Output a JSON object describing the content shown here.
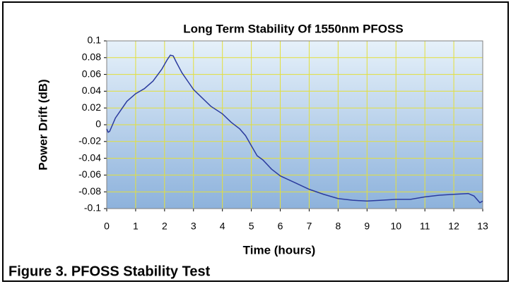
{
  "chart_data": {
    "type": "line",
    "title": "Long Term Stability Of 1550nm PFOSS",
    "xlabel": "Time (hours)",
    "ylabel": "Power Drift (dB)",
    "caption": "Figure 3. PFOSS Stability Test",
    "color": "#2b3b9e",
    "grid": true,
    "x": [
      0,
      0.05,
      0.1,
      0.2,
      0.3,
      0.5,
      0.7,
      1.0,
      1.3,
      1.6,
      1.9,
      2.1,
      2.2,
      2.3,
      2.4,
      2.6,
      2.8,
      3.0,
      3.3,
      3.6,
      4.0,
      4.3,
      4.6,
      4.8,
      5.0,
      5.2,
      5.4,
      5.7,
      6.0,
      6.5,
      7.0,
      7.5,
      8.0,
      8.5,
      9.0,
      9.5,
      10.0,
      10.5,
      11.0,
      11.5,
      12.0,
      12.5,
      12.7,
      12.9,
      13.0
    ],
    "values": [
      -0.005,
      -0.009,
      -0.008,
      0.0,
      0.008,
      0.018,
      0.028,
      0.037,
      0.043,
      0.052,
      0.066,
      0.078,
      0.083,
      0.082,
      0.075,
      0.062,
      0.052,
      0.042,
      0.032,
      0.022,
      0.013,
      0.003,
      -0.005,
      -0.013,
      -0.025,
      -0.037,
      -0.042,
      -0.053,
      -0.061,
      -0.069,
      -0.077,
      -0.083,
      -0.088,
      -0.09,
      -0.091,
      -0.09,
      -0.089,
      -0.089,
      -0.086,
      -0.084,
      -0.083,
      -0.082,
      -0.085,
      -0.093,
      -0.091
    ],
    "xlim": [
      0,
      13
    ],
    "xticks": [
      0,
      1,
      2,
      3,
      4,
      5,
      6,
      7,
      8,
      9,
      10,
      11,
      12,
      13
    ],
    "ylim": [
      -0.1,
      0.1
    ],
    "yticks": [
      -0.1,
      -0.08,
      -0.06,
      -0.04,
      -0.02,
      0,
      0.02,
      0.04,
      0.06,
      0.08,
      0.1
    ]
  }
}
